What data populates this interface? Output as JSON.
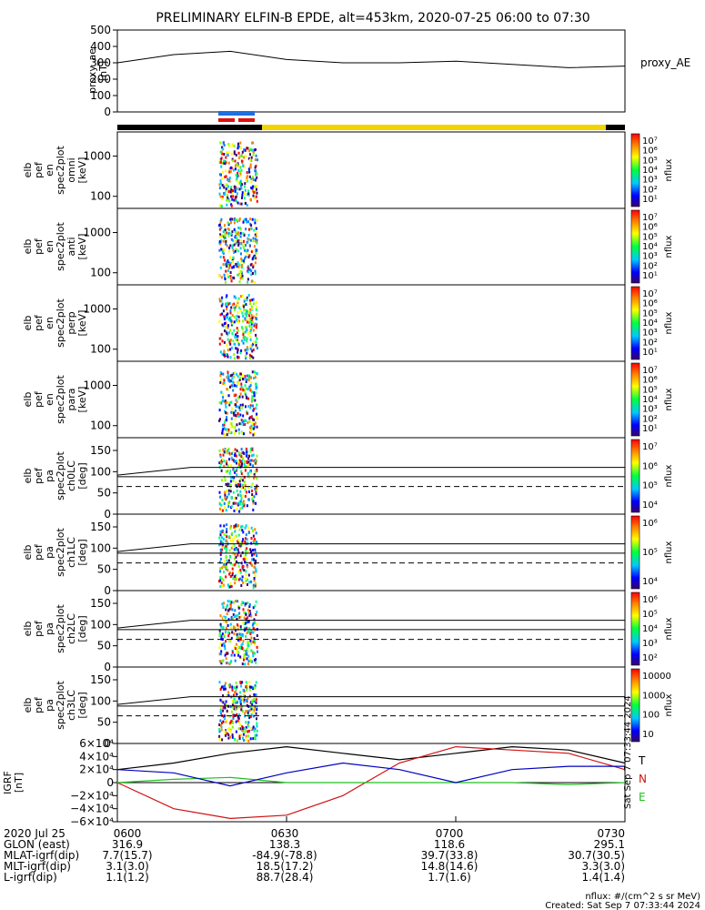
{
  "title": "PRELIMINARY ELFIN-B EPDE, alt=453km, 2020-07-25 06:00 to 07:30",
  "chart_data": [
    {
      "type": "line",
      "ylabel": [
        "proxy_ae",
        "[nT]"
      ],
      "legend": [
        "proxy_AE"
      ],
      "yticks": [
        "500",
        "400",
        "300",
        "200",
        "100",
        "0"
      ],
      "ylim": [
        0,
        500
      ],
      "x_minutes": [
        0,
        10,
        20,
        30,
        40,
        50,
        60,
        70,
        80,
        90
      ],
      "series": [
        {
          "values": [
            300,
            350,
            370,
            320,
            300,
            300,
            310,
            290,
            270,
            280
          ]
        }
      ]
    },
    {
      "type": "heatmap",
      "ylabel": [
        "elb",
        "pef",
        "en",
        "spec2plot",
        "omni",
        "[keV]"
      ],
      "yticks": [
        "1000",
        "100"
      ],
      "scale": "log",
      "colorbar": [
        "10⁷",
        "10⁶",
        "10⁵",
        "10⁴",
        "10³",
        "10²",
        "10¹"
      ],
      "colorbar_label": "nflux"
    },
    {
      "type": "heatmap",
      "ylabel": [
        "elb",
        "pef",
        "en",
        "spec2plot",
        "anti",
        "[keV]"
      ],
      "yticks": [
        "1000",
        "100"
      ],
      "scale": "log",
      "colorbar": [
        "10⁷",
        "10⁶",
        "10⁵",
        "10⁴",
        "10³",
        "10²",
        "10¹"
      ],
      "colorbar_label": "nflux"
    },
    {
      "type": "heatmap",
      "ylabel": [
        "elb",
        "pef",
        "en",
        "spec2plot",
        "perp",
        "[keV]"
      ],
      "yticks": [
        "1000",
        "100"
      ],
      "scale": "log",
      "colorbar": [
        "10⁷",
        "10⁶",
        "10⁵",
        "10⁴",
        "10³",
        "10²",
        "10¹"
      ],
      "colorbar_label": "nflux"
    },
    {
      "type": "heatmap",
      "ylabel": [
        "elb",
        "pef",
        "en",
        "spec2plot",
        "para",
        "[keV]"
      ],
      "yticks": [
        "1000",
        "100"
      ],
      "scale": "log",
      "colorbar": [
        "10⁷",
        "10⁶",
        "10⁵",
        "10⁴",
        "10³",
        "10²",
        "10¹"
      ],
      "colorbar_label": "nflux"
    },
    {
      "type": "heatmap",
      "ylabel": [
        "elb",
        "pef",
        "pa",
        "spec2plot",
        "ch0LC",
        "[deg]"
      ],
      "yticks": [
        "150",
        "100",
        "50",
        "0"
      ],
      "ylim": [
        0,
        180
      ],
      "colorbar": [
        "10⁷",
        "10⁶",
        "10⁵",
        "10⁴"
      ],
      "colorbar_label": "nflux"
    },
    {
      "type": "heatmap",
      "ylabel": [
        "elb",
        "pef",
        "pa",
        "spec2plot",
        "ch1LC",
        "[deg]"
      ],
      "yticks": [
        "150",
        "100",
        "50",
        "0"
      ],
      "ylim": [
        0,
        180
      ],
      "colorbar": [
        "10⁶",
        "10⁵",
        "10⁴"
      ],
      "colorbar_label": "nflux"
    },
    {
      "type": "heatmap",
      "ylabel": [
        "elb",
        "pef",
        "pa",
        "spec2plot",
        "ch2LC",
        "[deg]"
      ],
      "yticks": [
        "150",
        "100",
        "50",
        "0"
      ],
      "ylim": [
        0,
        180
      ],
      "colorbar": [
        "10⁶",
        "10⁵",
        "10⁴",
        "10³",
        "10²"
      ],
      "colorbar_label": "nflux"
    },
    {
      "type": "heatmap",
      "ylabel": [
        "elb",
        "pef",
        "pa",
        "spec2plot",
        "ch3LC",
        "[deg]"
      ],
      "yticks": [
        "150",
        "100",
        "50",
        "0"
      ],
      "ylim": [
        0,
        180
      ],
      "colorbar": [
        "10000",
        "1000",
        "100",
        "10"
      ],
      "colorbar_label": "nflux"
    },
    {
      "type": "line",
      "ylabel": [
        "IGRF",
        "[nT]"
      ],
      "yticks": [
        "6×10⁴",
        "4×10⁴",
        "2×10⁴",
        "0",
        "−2×10⁴",
        "−4×10⁴",
        "−6×10⁴"
      ],
      "ylim": [
        -60000,
        60000
      ],
      "legend": [
        "T",
        "N",
        "E"
      ],
      "x_minutes": [
        0,
        10,
        20,
        30,
        40,
        50,
        60,
        70,
        80,
        90
      ],
      "series": [
        {
          "name": "T",
          "color": "#000000",
          "values": [
            20000,
            30000,
            45000,
            55000,
            45000,
            35000,
            45000,
            55000,
            50000,
            30000
          ]
        },
        {
          "name": "N",
          "color": "#d01010",
          "values": [
            0,
            -40000,
            -55000,
            -50000,
            -20000,
            30000,
            55000,
            50000,
            45000,
            20000
          ]
        },
        {
          "name": "E",
          "color": "#20c020",
          "values": [
            0,
            5000,
            8000,
            0,
            0,
            0,
            0,
            0,
            -3000,
            0
          ]
        },
        {
          "color": "#0000c0",
          "values": [
            20000,
            15000,
            -5000,
            15000,
            30000,
            20000,
            0,
            20000,
            25000,
            25000
          ]
        }
      ]
    }
  ],
  "timestamp": "Sat Sep  7 07:33:44 2024",
  "xaxis_rows": [
    [
      "2020 Jul 25",
      "0600",
      "0630",
      "0700",
      "0730"
    ],
    [
      "GLON (east)",
      "316.9",
      "138.3",
      "118.6",
      "295.1"
    ],
    [
      "MLAT-igrf(dip)",
      "7.7(15.7)",
      "-84.9(-78.8)",
      "39.7(33.8)",
      "30.7(30.5)"
    ],
    [
      "MLT-igrf(dip)",
      "3.1(3.0)",
      "18.5(17.2)",
      "14.8(14.6)",
      "3.3(3.0)"
    ],
    [
      "L-igrf(dip)",
      "1.1(1.2)",
      "88.7(28.4)",
      "1.7(1.6)",
      "1.4(1.4)"
    ]
  ],
  "footer": [
    "nflux: #/(cm^2 s sr MeV)",
    "Created: Sat Sep  7 07:33:44 2024"
  ]
}
